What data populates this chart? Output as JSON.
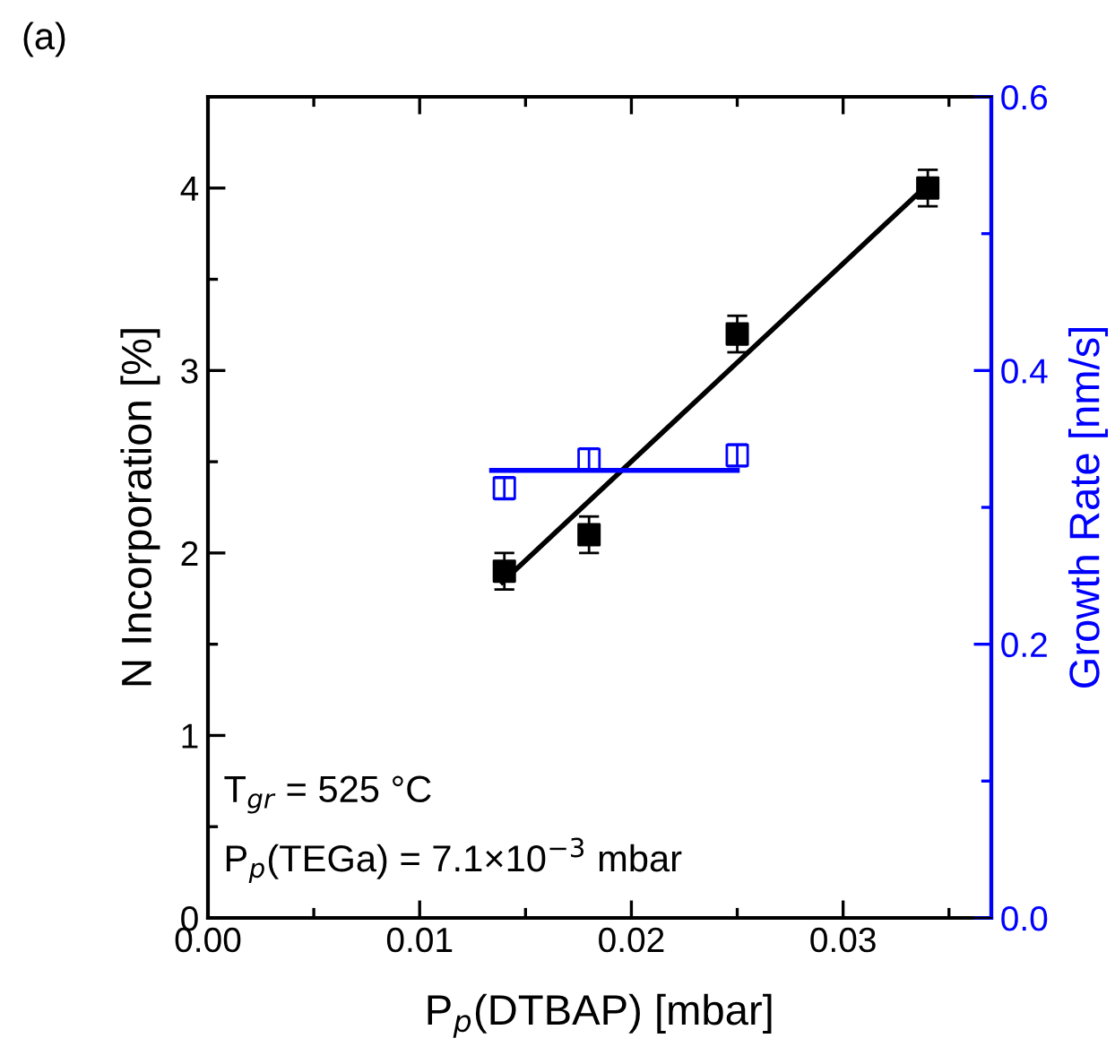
{
  "chart_data": {
    "type": "scatter",
    "title": "(a)",
    "xlabel": "P$_{p}$(DTBAP) [mbar]",
    "ylabel": "N Incorporation [%]",
    "y2label": "Growth Rate [nm/s]",
    "xlim": [
      0,
      0.037
    ],
    "ylim": [
      0,
      4.5
    ],
    "y2lim": [
      0,
      0.6
    ],
    "xticks": [
      {
        "value": 0,
        "label": "0.00"
      },
      {
        "value": 0.005,
        "label": null
      },
      {
        "value": 0.01,
        "label": "0.01"
      },
      {
        "value": 0.015,
        "label": null
      },
      {
        "value": 0.02,
        "label": "0.02"
      },
      {
        "value": 0.025,
        "label": null
      },
      {
        "value": 0.03,
        "label": "0.03"
      },
      {
        "value": 0.035,
        "label": null
      }
    ],
    "yticks": [
      0,
      {
        "value": 0.5,
        "label": null
      },
      1,
      {
        "value": 1.5,
        "label": null
      },
      2,
      {
        "value": 2.5,
        "label": null
      },
      3,
      {
        "value": 3.5,
        "label": null
      },
      4
    ],
    "y2ticks": [
      {
        "value": 0,
        "label": "0.0"
      },
      {
        "value": 0.1,
        "label": null
      },
      {
        "value": 0.2,
        "label": "0.2"
      },
      {
        "value": 0.3,
        "label": null
      },
      {
        "value": 0.4,
        "label": "0.4"
      },
      {
        "value": 0.5,
        "label": null
      },
      {
        "value": 0.6,
        "label": "0.6"
      }
    ],
    "marker": "square",
    "grid": false,
    "legend": false,
    "series": [
      {
        "color": "#000000",
        "x": [
          0.014,
          0.018,
          0.025,
          0.034
        ],
        "values": [
          1.9,
          2.1,
          3.2,
          4.0
        ],
        "errors": [
          0.1,
          0.1,
          0.1,
          0.1
        ]
      },
      {
        "type": "line",
        "marker": "none",
        "color": "#000000",
        "x": [
          0.0139,
          0.034
        ],
        "values": [
          1.84,
          4.02
        ]
      },
      {
        "color": "#0000ff",
        "axis": "y2",
        "x": [
          0.014,
          0.018,
          0.025
        ],
        "values": [
          0.314,
          0.335,
          0.338
        ],
        "errors": [
          0.008,
          0.008,
          0.008
        ]
      },
      {
        "type": "line",
        "marker": "none",
        "color": "#0000ff",
        "axis": "y2",
        "x": [
          0.0134,
          0.025
        ],
        "values": [
          0.327,
          0.327
        ]
      }
    ],
    "annotations": [
      "T$_{gr}$ = 525 °C",
      "P$_{p}$(TEGa) = 7.1×10$^{−3}$ mbar"
    ]
  }
}
